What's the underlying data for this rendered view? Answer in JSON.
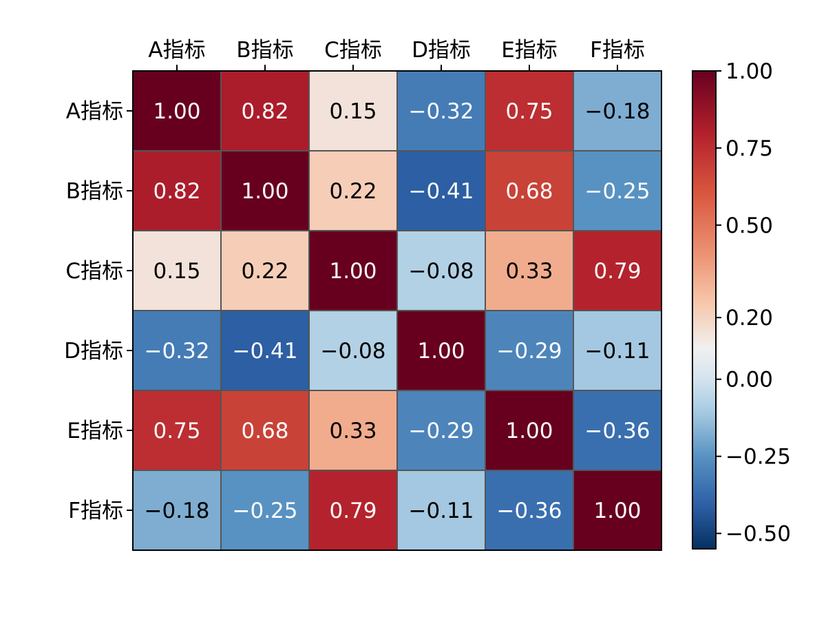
{
  "chart_data": {
    "type": "heatmap",
    "title": "",
    "x_labels": [
      "A指标",
      "B指标",
      "C指标",
      "D指标",
      "E指标",
      "F指标"
    ],
    "y_labels": [
      "A指标",
      "B指标",
      "C指标",
      "D指标",
      "E指标",
      "F指标"
    ],
    "x_axis_position": "top",
    "values": [
      [
        1.0,
        0.82,
        0.15,
        -0.32,
        0.75,
        -0.18
      ],
      [
        0.82,
        1.0,
        0.22,
        -0.41,
        0.68,
        -0.25
      ],
      [
        0.15,
        0.22,
        1.0,
        -0.08,
        0.33,
        0.79
      ],
      [
        -0.32,
        -0.41,
        -0.08,
        1.0,
        -0.29,
        -0.11
      ],
      [
        0.75,
        0.68,
        0.33,
        -0.29,
        1.0,
        -0.36
      ],
      [
        -0.18,
        -0.25,
        0.79,
        -0.11,
        -0.36,
        1.0
      ]
    ],
    "value_labels": [
      [
        "1.00",
        "0.82",
        "0.15",
        "−0.32",
        "0.75",
        "−0.18"
      ],
      [
        "0.82",
        "1.00",
        "0.22",
        "−0.41",
        "0.68",
        "−0.25"
      ],
      [
        "0.15",
        "0.22",
        "1.00",
        "−0.08",
        "0.33",
        "0.79"
      ],
      [
        "−0.32",
        "−0.41",
        "−0.08",
        "1.00",
        "−0.29",
        "−0.11"
      ],
      [
        "0.75",
        "0.68",
        "0.33",
        "−0.29",
        "1.00",
        "−0.36"
      ],
      [
        "−0.18",
        "−0.25",
        "0.79",
        "−0.11",
        "−0.36",
        "1.00"
      ]
    ],
    "colorbar": {
      "range": [
        -0.55,
        1.0
      ],
      "ticks": [
        1.0,
        0.75,
        0.5,
        0.2,
        0.0,
        -0.25,
        -0.5
      ],
      "tick_labels": [
        "1.00",
        "0.75",
        "0.50",
        "0.20",
        "0.00",
        "−0.25",
        "−0.50"
      ]
    },
    "colormap": "RdBu_r",
    "colormap_stops": [
      {
        "value": -0.55,
        "color": "#053061"
      },
      {
        "value": -0.4,
        "color": "#2f62a8"
      },
      {
        "value": -0.25,
        "color": "#5892c2"
      },
      {
        "value": -0.1,
        "color": "#a9cce3"
      },
      {
        "value": 0.0,
        "color": "#d4e3ef"
      },
      {
        "value": 0.1,
        "color": "#f0f0f0"
      },
      {
        "value": 0.25,
        "color": "#f7c6aa"
      },
      {
        "value": 0.4,
        "color": "#ec9575"
      },
      {
        "value": 0.6,
        "color": "#d9583f"
      },
      {
        "value": 0.8,
        "color": "#b2202c"
      },
      {
        "value": 1.0,
        "color": "#67001f"
      }
    ],
    "grid_line_color": "#555555",
    "dark_text_color": "#000000",
    "light_text_color": "#ffffff"
  }
}
